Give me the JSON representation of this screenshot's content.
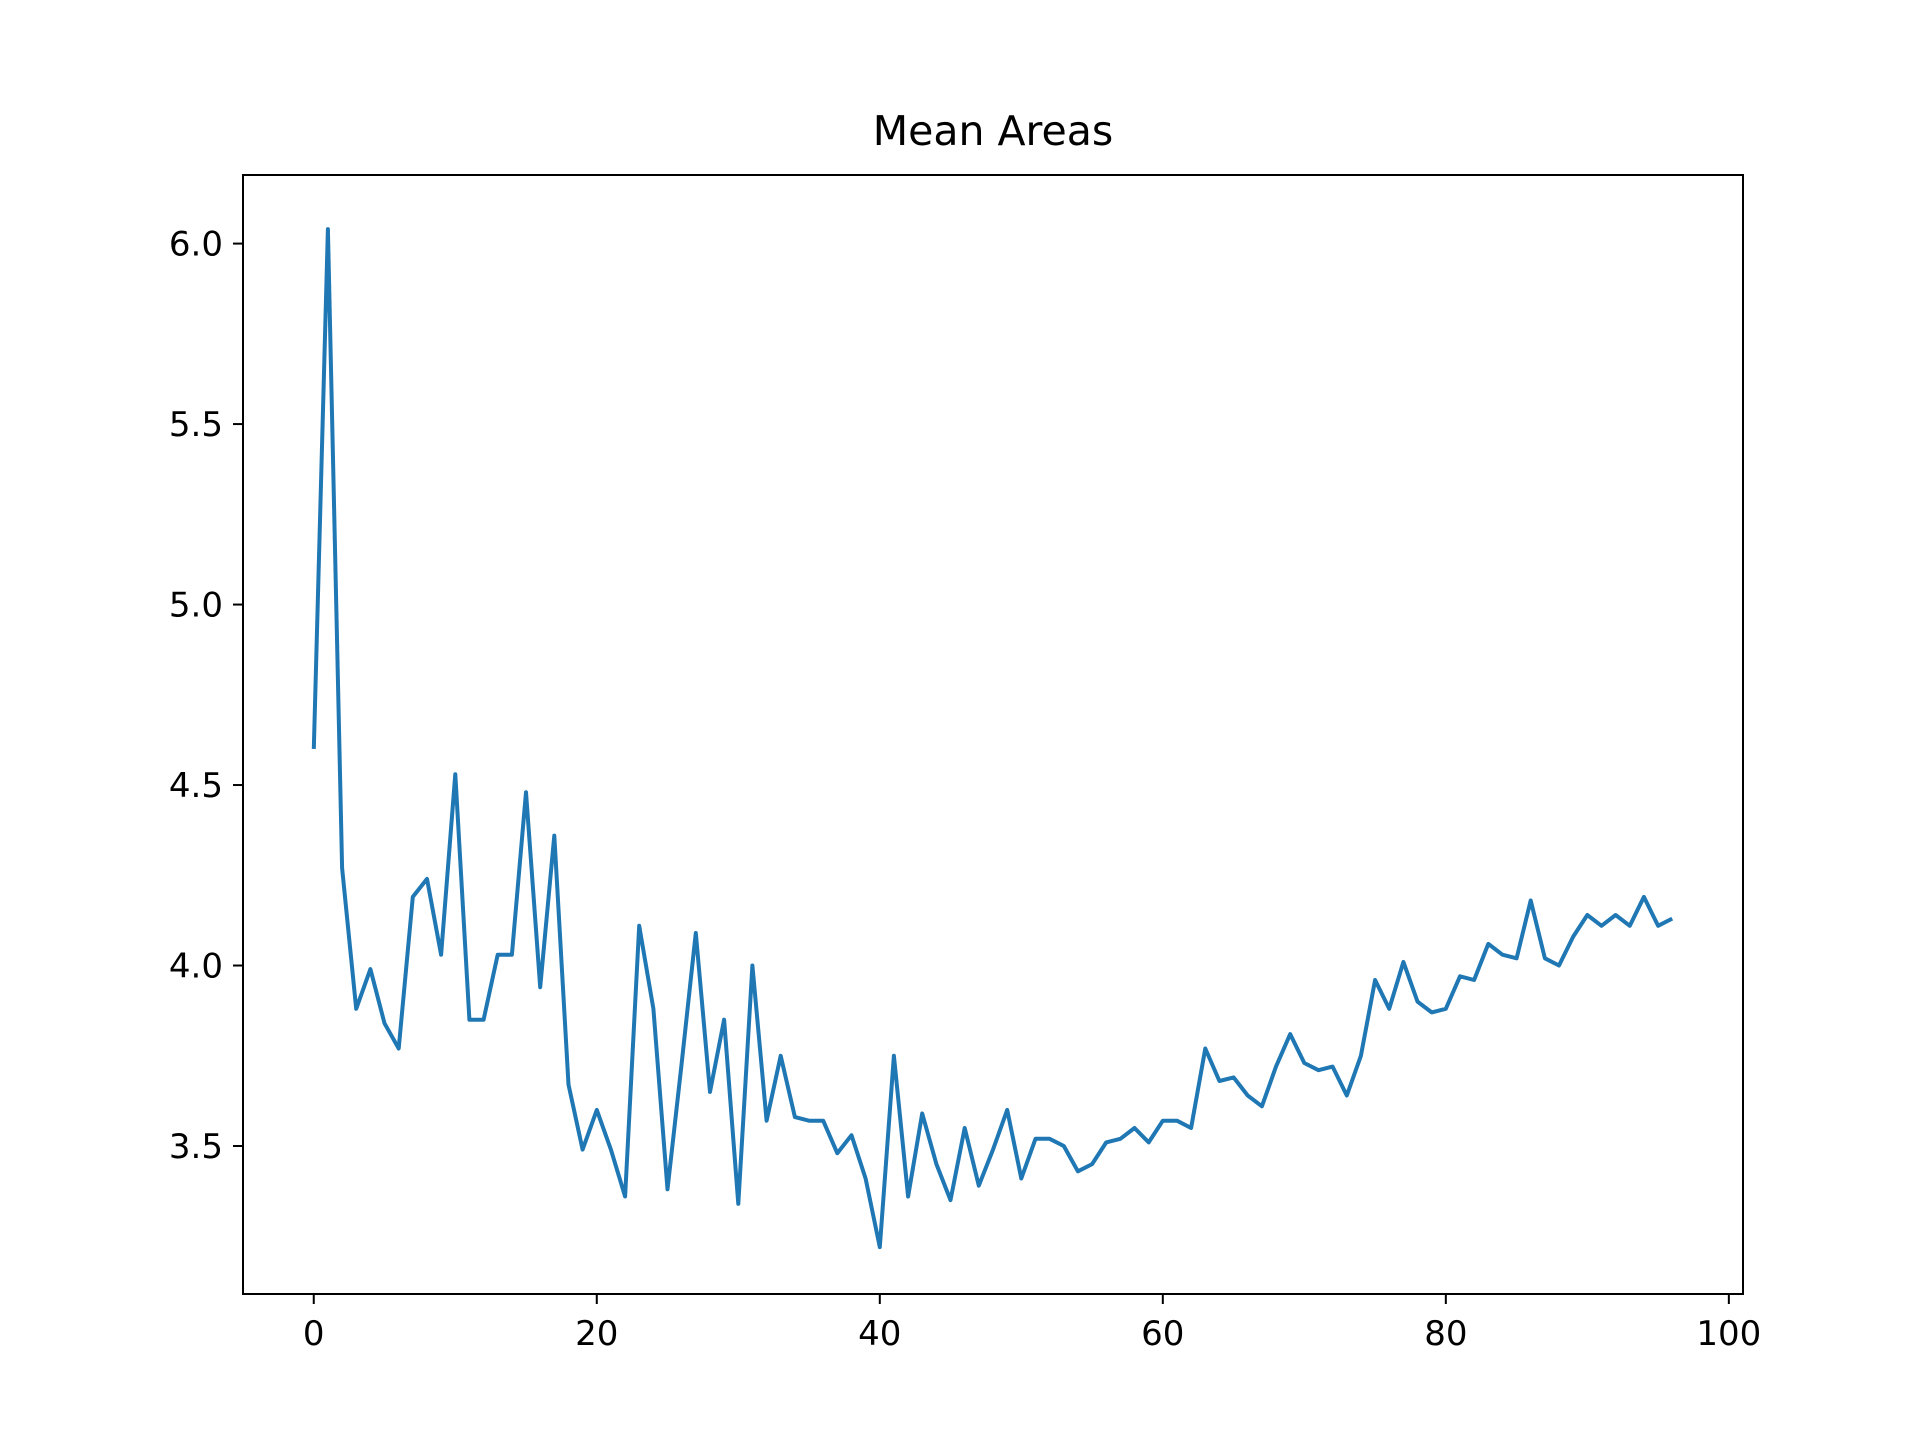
{
  "chart_data": {
    "type": "line",
    "title": "Mean Areas",
    "xlabel": "",
    "ylabel": "",
    "xlim": [
      -5,
      101
    ],
    "ylim": [
      3.09,
      6.19
    ],
    "grid": false,
    "legend": "none",
    "xticks": [
      0,
      20,
      40,
      60,
      80,
      100
    ],
    "xtick_labels": [
      "0",
      "20",
      "40",
      "60",
      "80",
      "100"
    ],
    "yticks": [
      3.5,
      4.0,
      4.5,
      5.0,
      5.5,
      6.0
    ],
    "ytick_labels": [
      "3.5",
      "4.0",
      "4.5",
      "5.0",
      "5.5",
      "6.0"
    ],
    "series": [
      {
        "color": "#1f77b4",
        "x": [
          0,
          1,
          2,
          3,
          4,
          5,
          6,
          7,
          8,
          9,
          10,
          11,
          12,
          13,
          14,
          15,
          16,
          17,
          18,
          19,
          20,
          21,
          22,
          23,
          24,
          25,
          26,
          27,
          28,
          29,
          30,
          31,
          32,
          33,
          34,
          35,
          36,
          37,
          38,
          39,
          40,
          41,
          42,
          43,
          44,
          45,
          46,
          47,
          48,
          49,
          50,
          51,
          52,
          53,
          54,
          55,
          56,
          57,
          58,
          59,
          60,
          61,
          62,
          63,
          64,
          65,
          66,
          67,
          68,
          69,
          70,
          71,
          72,
          73,
          74,
          75,
          76,
          77,
          78,
          79,
          80,
          81,
          82,
          83,
          84,
          85,
          86,
          87,
          88,
          89,
          90,
          91,
          92,
          93,
          94,
          95,
          96
        ],
        "y": [
          4.6,
          6.04,
          4.27,
          3.88,
          3.99,
          3.84,
          3.77,
          4.19,
          4.24,
          4.03,
          4.53,
          3.85,
          3.85,
          4.03,
          4.03,
          4.48,
          3.94,
          4.36,
          3.67,
          3.49,
          3.6,
          3.49,
          3.36,
          4.11,
          3.88,
          3.38,
          3.73,
          4.09,
          3.65,
          3.85,
          3.34,
          4.0,
          3.57,
          3.75,
          3.58,
          3.57,
          3.57,
          3.48,
          3.53,
          3.41,
          3.22,
          3.75,
          3.36,
          3.59,
          3.45,
          3.35,
          3.55,
          3.39,
          3.49,
          3.6,
          3.41,
          3.52,
          3.52,
          3.5,
          3.43,
          3.45,
          3.51,
          3.52,
          3.55,
          3.51,
          3.57,
          3.57,
          3.55,
          3.77,
          3.68,
          3.69,
          3.64,
          3.61,
          3.72,
          3.81,
          3.73,
          3.71,
          3.72,
          3.64,
          3.75,
          3.96,
          3.88,
          4.01,
          3.9,
          3.87,
          3.88,
          3.97,
          3.96,
          4.06,
          4.03,
          4.02,
          4.18,
          4.02,
          4.0,
          4.08,
          4.14,
          4.11,
          4.14,
          4.11,
          4.19,
          4.11,
          4.13
        ]
      }
    ]
  }
}
